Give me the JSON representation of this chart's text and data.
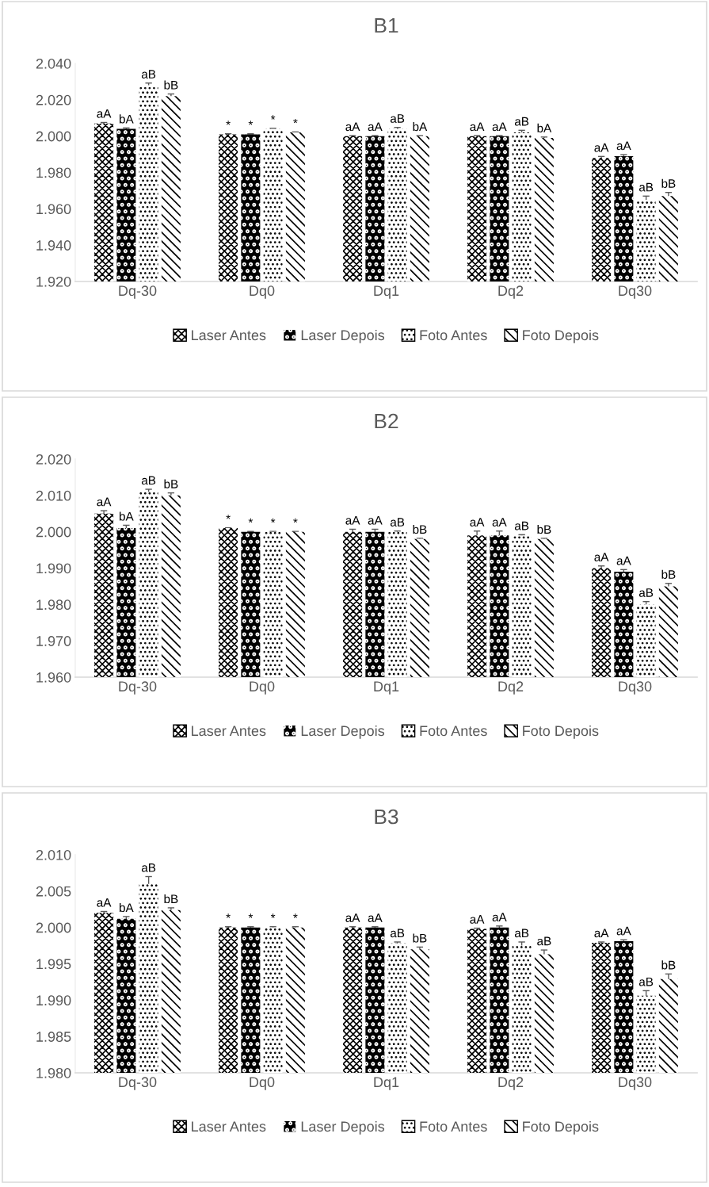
{
  "chart_data": [
    {
      "type": "bar",
      "title": "B1",
      "categories": [
        "Dq-30",
        "Dq0",
        "Dq1",
        "Dq2",
        "Dq30"
      ],
      "legend": "bottom",
      "grid": false,
      "ylim": [
        1920,
        2040
      ],
      "yticks": [
        {
          "value": 1920,
          "label": "1.920"
        },
        {
          "value": 1940,
          "label": "1.940"
        },
        {
          "value": 1960,
          "label": "1.960"
        },
        {
          "value": 1980,
          "label": "1.980"
        },
        {
          "value": 2000,
          "label": "2.000"
        },
        {
          "value": 2020,
          "label": "2.020"
        },
        {
          "value": 2040,
          "label": "2.040"
        }
      ],
      "series": [
        {
          "name": "Laser Antes",
          "values": [
            2007,
            2001,
            2000,
            2000,
            1988
          ],
          "errors": [
            0.5,
            0.3,
            0.3,
            0.3,
            0.8
          ],
          "value_labels": [
            "aA",
            "*",
            "aA",
            "aA",
            "aA"
          ]
        },
        {
          "name": "Laser Depois",
          "values": [
            2004,
            2001,
            2000,
            2000,
            1989
          ],
          "errors": [
            0.5,
            0.3,
            0.3,
            0.3,
            0.8
          ],
          "value_labels": [
            "bA",
            "*",
            "aA",
            "aA",
            "aA"
          ]
        },
        {
          "name": "Foto Antes",
          "values": [
            2028,
            2004,
            2004,
            2002,
            1965
          ],
          "errors": [
            1.2,
            0.3,
            0.8,
            1.2,
            2
          ],
          "value_labels": [
            "aB",
            "*",
            "aB",
            "aB",
            "aB"
          ]
        },
        {
          "name": "Foto Depois",
          "values": [
            2022,
            2002,
            2000,
            1999,
            1967
          ],
          "errors": [
            1.2,
            0.3,
            0.3,
            0.5,
            2
          ],
          "value_labels": [
            "bB",
            "*",
            "bA",
            "bA",
            "bB"
          ]
        }
      ]
    },
    {
      "type": "bar",
      "title": "B2",
      "categories": [
        "Dq-30",
        "Dq0",
        "Dq1",
        "Dq2",
        "Dq30"
      ],
      "legend": "bottom",
      "grid": false,
      "ylim": [
        1960,
        2020
      ],
      "yticks": [
        {
          "value": 1960,
          "label": "1.960"
        },
        {
          "value": 1970,
          "label": "1.970"
        },
        {
          "value": 1980,
          "label": "1.980"
        },
        {
          "value": 1990,
          "label": "1.990"
        },
        {
          "value": 2000,
          "label": "2.000"
        },
        {
          "value": 2010,
          "label": "2.010"
        },
        {
          "value": 2020,
          "label": "2.020"
        }
      ],
      "series": [
        {
          "name": "Laser Antes",
          "values": [
            2005,
            2001,
            2000,
            1999,
            1990
          ],
          "errors": [
            0.8,
            0.1,
            0.7,
            1.2,
            0.6
          ],
          "value_labels": [
            "aA",
            "*",
            "aA",
            "aA",
            "aA"
          ]
        },
        {
          "name": "Laser Depois",
          "values": [
            2001,
            2000,
            2000,
            1999,
            1989
          ],
          "errors": [
            0.8,
            0.1,
            0.7,
            1.2,
            0.6
          ],
          "value_labels": [
            "bA",
            "*",
            "aA",
            "aA",
            "aA"
          ]
        },
        {
          "name": "Foto Antes",
          "values": [
            2011,
            2000,
            2000,
            1999,
            1980
          ],
          "errors": [
            0.7,
            0.1,
            0.2,
            0.2,
            0.8
          ],
          "value_labels": [
            "aB",
            "*",
            "aB",
            "aB",
            "aB"
          ]
        },
        {
          "name": "Foto Depois",
          "values": [
            2010,
            2000,
            1998,
            1998,
            1985
          ],
          "errors": [
            0.7,
            0.1,
            0.2,
            0.2,
            0.8
          ],
          "value_labels": [
            "bB",
            "*",
            "bB",
            "bB",
            "bB"
          ]
        }
      ]
    },
    {
      "type": "bar",
      "title": "B3",
      "categories": [
        "Dq-30",
        "Dq0",
        "Dq1",
        "Dq2",
        "Dq30"
      ],
      "legend": "bottom",
      "grid": false,
      "ylim": [
        1980,
        2010
      ],
      "yticks": [
        {
          "value": 1980,
          "label": "1.980"
        },
        {
          "value": 1985,
          "label": "1.985"
        },
        {
          "value": 1990,
          "label": "1.990"
        },
        {
          "value": 1995,
          "label": "1.995"
        },
        {
          "value": 2000,
          "label": "2.000"
        },
        {
          "value": 2005,
          "label": "2.005"
        },
        {
          "value": 2010,
          "label": "2.010"
        }
      ],
      "series": [
        {
          "name": "Laser Antes",
          "values": [
            2002,
            2000,
            2000,
            1999.8,
            1997.9
          ],
          "errors": [
            0.2,
            0.1,
            0.1,
            0.1,
            0.1
          ],
          "value_labels": [
            "aA",
            "*",
            "aA",
            "aA",
            "aA"
          ]
        },
        {
          "name": "Laser Depois",
          "values": [
            2001.2,
            2000,
            2000,
            2000,
            1998.1
          ],
          "errors": [
            0.3,
            0.1,
            0.1,
            0.2,
            0.2
          ],
          "value_labels": [
            "bA",
            "*",
            "aA",
            "aA",
            "aA"
          ]
        },
        {
          "name": "Foto Antes",
          "values": [
            2006,
            2000,
            1997.8,
            1997.5,
            1990.6
          ],
          "errors": [
            1,
            0.1,
            0.2,
            0.5,
            0.7
          ],
          "value_labels": [
            "aB",
            "*",
            "aB",
            "aB",
            "aB"
          ]
        },
        {
          "name": "Foto Depois",
          "values": [
            2002.4,
            2000,
            1997,
            1996.3,
            1992.9
          ],
          "errors": [
            0.3,
            0.1,
            0.3,
            0.6,
            0.7
          ],
          "value_labels": [
            "bB",
            "*",
            "bB",
            "aB",
            "bB"
          ]
        }
      ]
    }
  ]
}
